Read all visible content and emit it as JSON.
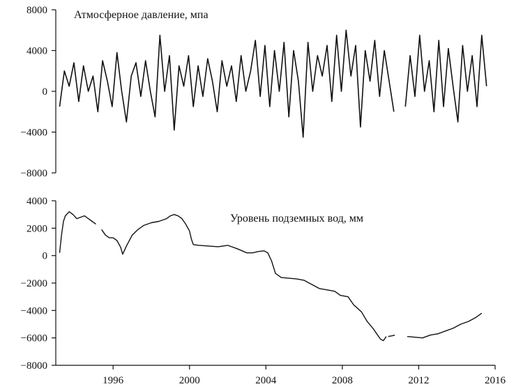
{
  "chart_data": [
    {
      "type": "line",
      "title": "Атмосферное давление, мпа",
      "xlabel": "",
      "ylabel": "",
      "ylim": [
        -8000,
        8000
      ],
      "yticks": [
        "8000",
        "4000",
        "0",
        "−4000",
        "−8000"
      ],
      "ytick_values": [
        8000,
        4000,
        0,
        -4000,
        -8000
      ],
      "xlim": [
        1993.0,
        2016.0
      ],
      "grid": false,
      "series": [
        {
          "x": [
            1993.2,
            1993.45,
            1993.7,
            1993.95,
            1994.2,
            1994.45,
            1994.7,
            1994.95,
            1995.2,
            1995.45,
            1995.7,
            1995.95,
            1996.2,
            1996.45,
            1996.7,
            1996.95,
            1997.2,
            1997.45,
            1997.7,
            1997.95,
            1998.2,
            1998.45,
            1998.7,
            1998.95,
            1999.2,
            1999.45,
            1999.7,
            1999.95,
            2000.2,
            2000.45,
            2000.7,
            2000.95,
            2001.2,
            2001.45,
            2001.7,
            2001.95,
            2002.2,
            2002.45,
            2002.7,
            2002.95,
            2003.2,
            2003.45,
            2003.7,
            2003.95,
            2004.2,
            2004.45,
            2004.7,
            2004.95,
            2005.2,
            2005.45,
            2005.7,
            2005.95,
            2006.2,
            2006.45,
            2006.7,
            2006.95,
            2007.2,
            2007.45,
            2007.7,
            2007.95,
            2008.2,
            2008.45,
            2008.7,
            2008.95,
            2009.2,
            2009.45,
            2009.7,
            2009.95,
            2010.2,
            2010.45,
            2010.7
          ],
          "values": [
            -1500,
            2000,
            500,
            2800,
            -1000,
            2500,
            0,
            1500,
            -2000,
            3000,
            1000,
            -1500,
            3800,
            0,
            -3000,
            1500,
            2800,
            -500,
            3000,
            0,
            -2500,
            5500,
            0,
            3500,
            -3800,
            2500,
            500,
            3500,
            -1500,
            2500,
            -500,
            3200,
            1000,
            -2000,
            3000,
            500,
            2500,
            -1000,
            3500,
            0,
            2000,
            5000,
            -500,
            4500,
            -1500,
            4000,
            0,
            4800,
            -2500,
            4000,
            1000,
            -4500,
            4800,
            0,
            3500,
            1500,
            4500,
            -1000,
            5500,
            0,
            6000,
            1500,
            4500,
            -3500,
            4000,
            1000,
            5000,
            -500,
            4000,
            1000,
            -2000
          ]
        },
        {
          "x": [
            2011.3,
            2011.55,
            2011.8,
            2012.05,
            2012.3,
            2012.55,
            2012.8,
            2013.05,
            2013.3,
            2013.55,
            2013.8,
            2014.05,
            2014.3,
            2014.55,
            2014.8,
            2015.05,
            2015.3,
            2015.55
          ],
          "values": [
            -1500,
            3500,
            -500,
            5500,
            0,
            3000,
            -2000,
            5000,
            -1500,
            4200,
            500,
            -3000,
            4500,
            0,
            3500,
            -1500,
            5500,
            500
          ]
        }
      ]
    },
    {
      "type": "line",
      "title": "Уровень подземных вод, мм",
      "xlabel": "",
      "ylabel": "",
      "ylim": [
        -8000,
        4000
      ],
      "yticks": [
        "4000",
        "2000",
        "0",
        "−2000",
        "−4000",
        "−6000",
        "−8000"
      ],
      "ytick_values": [
        4000,
        2000,
        0,
        -2000,
        -4000,
        -6000,
        -8000
      ],
      "xlim": [
        1993.0,
        2016.0
      ],
      "xticks": [
        "1996",
        "2000",
        "2004",
        "2008",
        "2012",
        "2016"
      ],
      "xtick_values": [
        1996,
        2000,
        2004,
        2008,
        2012,
        2016
      ],
      "grid": false,
      "series": [
        {
          "x": [
            1993.2,
            1993.3,
            1993.4,
            1993.5,
            1993.7,
            1993.9,
            1994.1,
            1994.3,
            1994.5,
            1994.7,
            1994.9,
            1995.1
          ],
          "values": [
            200,
            1500,
            2500,
            2900,
            3200,
            3000,
            2700,
            2800,
            2900,
            2700,
            2500,
            2300
          ]
        },
        {
          "x": [
            1995.4,
            1995.6,
            1995.8,
            1996.0,
            1996.2,
            1996.4,
            1996.5,
            1996.7,
            1997.0,
            1997.3,
            1997.6,
            1998.0,
            1998.4,
            1998.8,
            1999.0,
            1999.2,
            1999.4,
            1999.6,
            1999.8,
            2000.0,
            2000.1,
            2000.2
          ],
          "values": [
            1900,
            1500,
            1300,
            1300,
            1100,
            600,
            100,
            700,
            1500,
            1900,
            2200,
            2400,
            2500,
            2700,
            2900,
            3000,
            2900,
            2700,
            2300,
            1800,
            1200,
            800
          ]
        },
        {
          "x": [
            2000.2,
            2000.5,
            2001.0,
            2001.5,
            2002.0,
            2002.5,
            2003.0,
            2003.3,
            2003.6,
            2003.9,
            2004.1,
            2004.3,
            2004.5,
            2004.8,
            2005.2,
            2005.6,
            2006.0,
            2006.4,
            2006.8,
            2007.2,
            2007.6,
            2007.9,
            2008.3,
            2008.6,
            2009.0,
            2009.3,
            2009.6,
            2009.8,
            2010.0,
            2010.15,
            2010.3
          ],
          "values": [
            800,
            750,
            700,
            650,
            750,
            500,
            200,
            200,
            300,
            350,
            200,
            -400,
            -1300,
            -1600,
            -1650,
            -1700,
            -1800,
            -2100,
            -2400,
            -2500,
            -2600,
            -2900,
            -3000,
            -3600,
            -4100,
            -4800,
            -5300,
            -5700,
            -6100,
            -6200,
            -5900
          ]
        },
        {
          "x": [
            2010.4,
            2010.6,
            2010.75
          ],
          "values": [
            -5900,
            -5850,
            -5800
          ]
        },
        {
          "x": [
            2011.4,
            2011.8,
            2012.2,
            2012.6,
            2013.0,
            2013.4,
            2013.8,
            2014.2,
            2014.6,
            2015.0,
            2015.3
          ],
          "values": [
            -5900,
            -5950,
            -6000,
            -5800,
            -5700,
            -5500,
            -5300,
            -5000,
            -4800,
            -4500,
            -4200
          ]
        }
      ]
    }
  ]
}
